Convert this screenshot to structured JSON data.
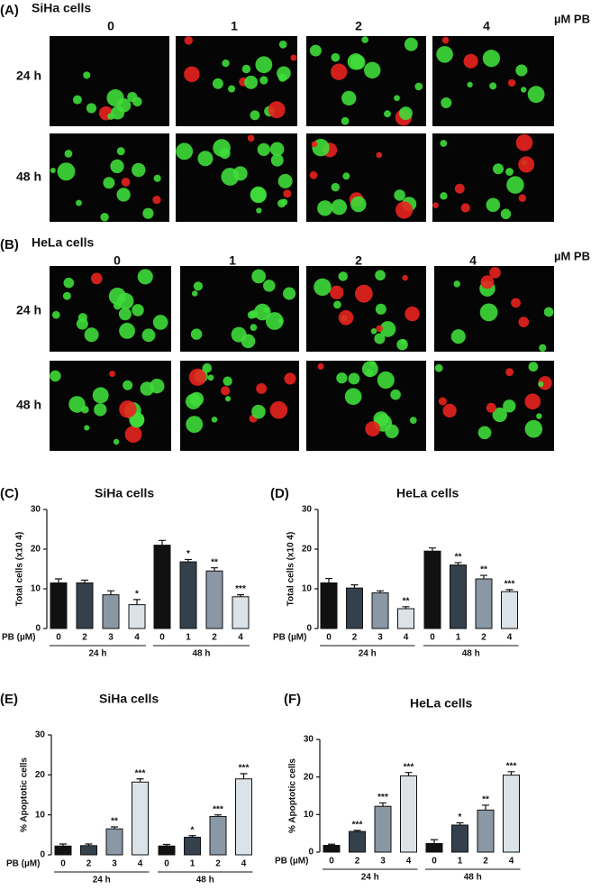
{
  "micrographs": [
    {
      "label": "(A)",
      "title": "SiHa cells",
      "unit": "µM PB",
      "doses": [
        "0",
        "1",
        "2",
        "4"
      ],
      "times": [
        "24 h",
        "48 h"
      ]
    },
    {
      "label": "(B)",
      "title": "HeLa cells",
      "unit": "µM PB",
      "doses": [
        "0",
        "1",
        "2",
        "4"
      ],
      "times": [
        "24 h",
        "48 h"
      ]
    }
  ],
  "chart_data": [
    {
      "type": "bar",
      "label": "(C)",
      "title": "SiHa cells",
      "ylabel": "Total cells (x10 4)",
      "xlabel": "PB (µM)",
      "colors": [
        "#111111",
        "#34404c",
        "#8a97a4",
        "#dce3e8"
      ],
      "ylim": [
        0,
        30
      ],
      "yticks": [
        0,
        10,
        20,
        30
      ],
      "groups": [
        {
          "name": "24 h",
          "categories": [
            "0",
            "2",
            "3",
            "4"
          ],
          "values": [
            11.5,
            11.5,
            8.5,
            6
          ],
          "errors": [
            1,
            0.7,
            1,
            1.3
          ],
          "annotations": [
            null,
            null,
            null,
            "*"
          ]
        },
        {
          "name": "48 h",
          "categories": [
            "0",
            "1",
            "2",
            "4"
          ],
          "values": [
            21,
            16.8,
            14.5,
            8
          ],
          "errors": [
            1.2,
            0.6,
            0.8,
            0.5
          ],
          "annotations": [
            null,
            "*",
            "**",
            "***"
          ]
        }
      ]
    },
    {
      "type": "bar",
      "label": "(D)",
      "title": "HeLa cells",
      "ylabel": "Total cells (x10 4)",
      "xlabel": "PB (µM)",
      "colors": [
        "#111111",
        "#34404c",
        "#8a97a4",
        "#dce3e8"
      ],
      "ylim": [
        0,
        30
      ],
      "yticks": [
        0,
        10,
        20,
        30
      ],
      "groups": [
        {
          "name": "24 h",
          "categories": [
            "0",
            "2",
            "3",
            "4"
          ],
          "values": [
            11.5,
            10.2,
            9,
            5
          ],
          "errors": [
            1.1,
            0.8,
            0.5,
            0.5
          ],
          "annotations": [
            null,
            null,
            null,
            "**"
          ]
        },
        {
          "name": "48 h",
          "categories": [
            "0",
            "1",
            "2",
            "4"
          ],
          "values": [
            19.5,
            16,
            12.5,
            9.3
          ],
          "errors": [
            0.8,
            0.6,
            0.9,
            0.5
          ],
          "annotations": [
            null,
            "**",
            "**",
            "***"
          ]
        }
      ]
    },
    {
      "type": "bar",
      "label": "(E)",
      "title": "SiHa cells",
      "ylabel": "% Apoptotic cells",
      "xlabel": "PB (µM)",
      "colors": [
        "#111111",
        "#34404c",
        "#8a97a4",
        "#dce3e8"
      ],
      "ylim": [
        0,
        30
      ],
      "yticks": [
        0,
        10,
        20,
        30
      ],
      "groups": [
        {
          "name": "24 h",
          "categories": [
            "0",
            "2",
            "3",
            "4"
          ],
          "values": [
            2.2,
            2.3,
            6.5,
            18.2
          ],
          "errors": [
            0.5,
            0.4,
            0.5,
            0.8
          ],
          "annotations": [
            null,
            null,
            "**",
            "***"
          ]
        },
        {
          "name": "48 h",
          "categories": [
            "0",
            "1",
            "2",
            "4"
          ],
          "values": [
            2.2,
            4.4,
            9.6,
            19
          ],
          "errors": [
            0.4,
            0.4,
            0.4,
            1.3
          ],
          "annotations": [
            null,
            "*",
            "***",
            "***"
          ]
        }
      ]
    },
    {
      "type": "bar",
      "label": "(F)",
      "title": "HeLa cells",
      "ylabel": "% Apoptotic cells",
      "xlabel": "PB (µM)",
      "colors": [
        "#111111",
        "#34404c",
        "#8a97a4",
        "#dce3e8"
      ],
      "ylim": [
        0,
        30
      ],
      "yticks": [
        0,
        10,
        20,
        30
      ],
      "groups": [
        {
          "name": "24 h",
          "categories": [
            "0",
            "2",
            "3",
            "4"
          ],
          "values": [
            1.8,
            5.5,
            12.2,
            20.3
          ],
          "errors": [
            0.3,
            0.3,
            0.9,
            0.9
          ],
          "annotations": [
            null,
            "***",
            "***",
            "***"
          ]
        },
        {
          "name": "48 h",
          "categories": [
            "0",
            "1",
            "2",
            "4"
          ],
          "values": [
            2.3,
            7.2,
            11.2,
            20.5
          ],
          "errors": [
            1,
            0.6,
            1.3,
            0.9
          ],
          "annotations": [
            null,
            "*",
            "**",
            "***"
          ]
        }
      ]
    }
  ]
}
